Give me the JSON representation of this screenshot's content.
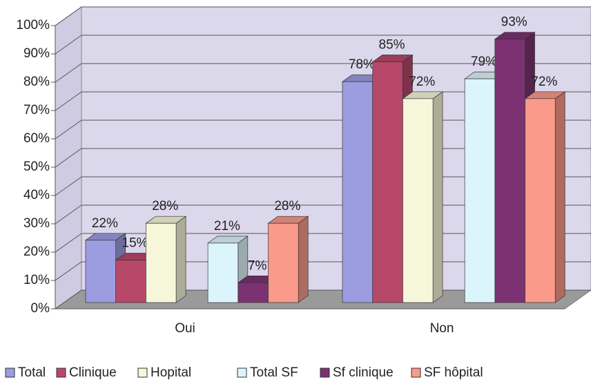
{
  "chart_data": {
    "type": "bar",
    "categories": [
      "Oui",
      "Non"
    ],
    "series": [
      {
        "name": "Total",
        "color": "#9c9ce0",
        "values": [
          22,
          78
        ],
        "value_labels": [
          "22%",
          "78%"
        ]
      },
      {
        "name": "Clinique",
        "color": "#b8486a",
        "values": [
          15,
          85
        ],
        "value_labels": [
          "15%",
          "85%"
        ]
      },
      {
        "name": "Hopital",
        "color": "#f6f6da",
        "values": [
          28,
          72
        ],
        "value_labels": [
          "28%",
          "72%"
        ]
      },
      {
        "name": "Total SF",
        "color": "#dcf4fb",
        "values": [
          21,
          79
        ],
        "value_labels": [
          "21%",
          "79%"
        ]
      },
      {
        "name": "Sf clinique",
        "color": "#7c3272",
        "values": [
          7,
          93
        ],
        "value_labels": [
          "7%",
          "93%"
        ]
      },
      {
        "name": "SF hôpital",
        "color": "#f99a8a",
        "values": [
          28,
          72
        ],
        "value_labels": [
          "28%",
          "72%"
        ]
      }
    ],
    "ylim": [
      0,
      100
    ],
    "yticks": [
      {
        "value": 0,
        "label": "0%"
      },
      {
        "value": 10,
        "label": "10%"
      },
      {
        "value": 20,
        "label": "20%"
      },
      {
        "value": 30,
        "label": "30%"
      },
      {
        "value": 40,
        "label": "40%"
      },
      {
        "value": 50,
        "label": "50%"
      },
      {
        "value": 60,
        "label": "60%"
      },
      {
        "value": 70,
        "label": "70%"
      },
      {
        "value": 80,
        "label": "80%"
      },
      {
        "value": 90,
        "label": "90%"
      },
      {
        "value": 100,
        "label": "100%"
      }
    ],
    "grid": true,
    "legend": "bottom"
  }
}
